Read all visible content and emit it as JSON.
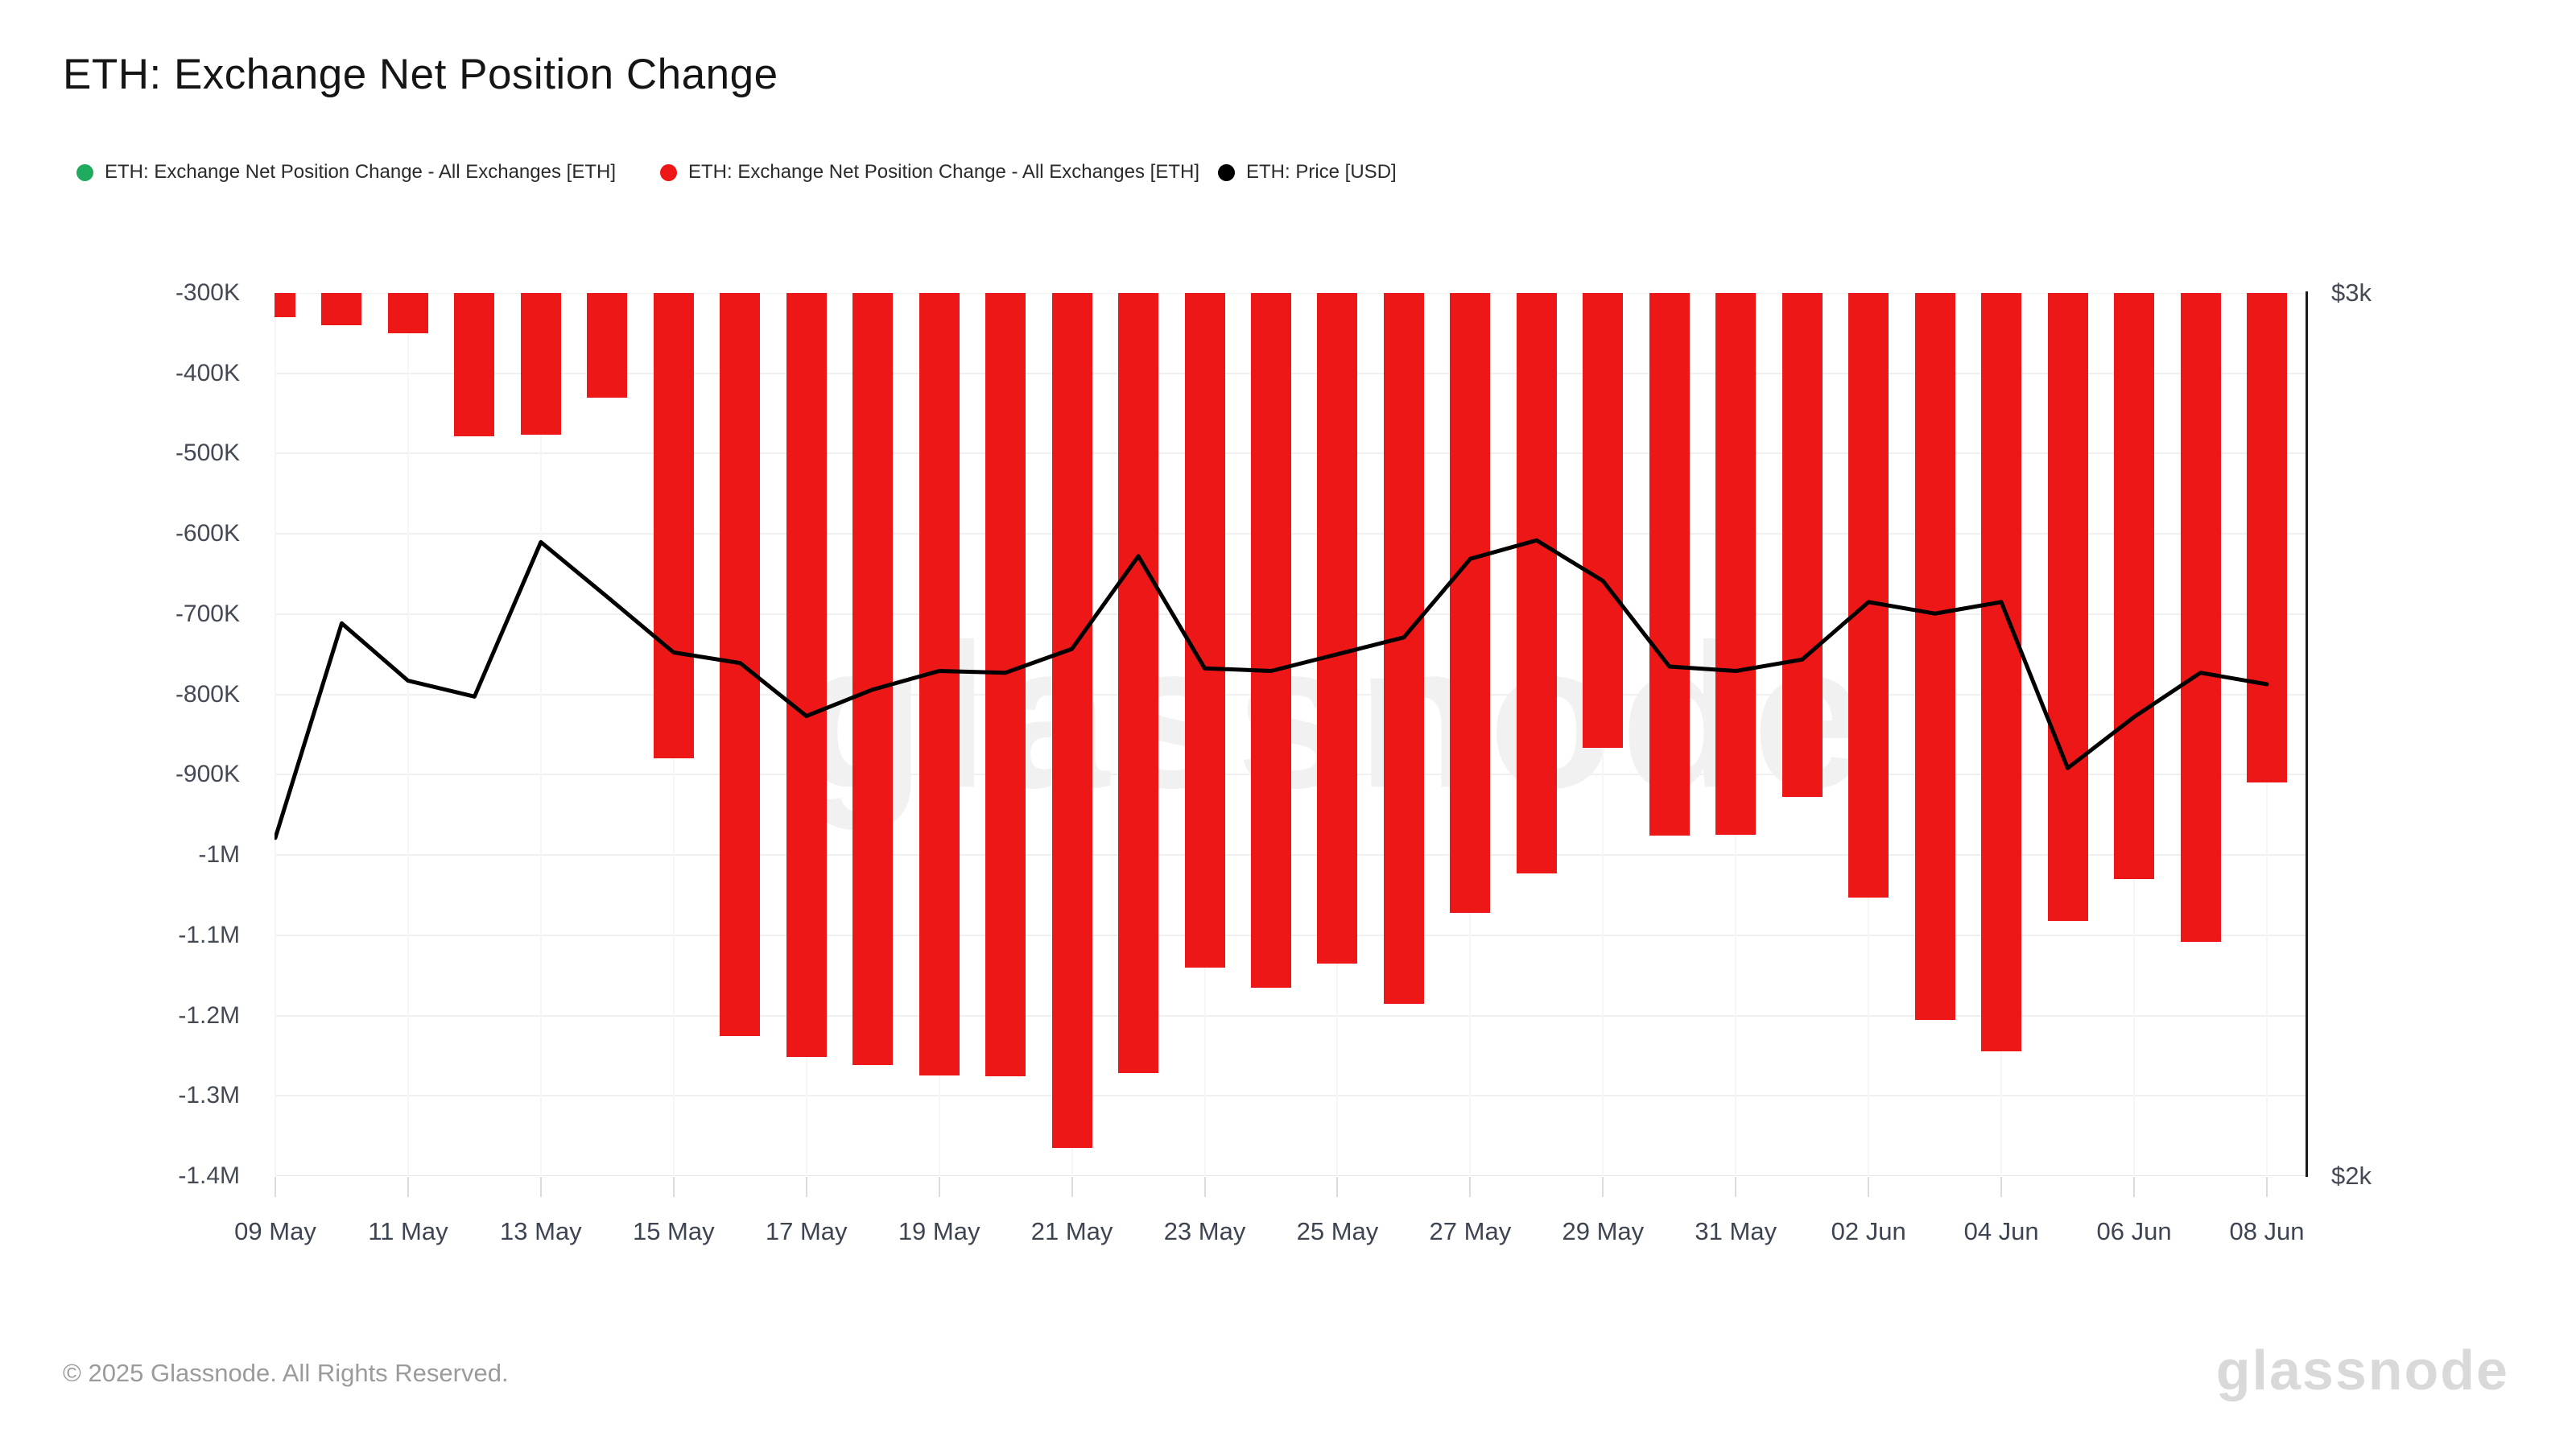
{
  "page": {
    "title": "ETH: Exchange Net Position Change"
  },
  "legend": {
    "items": [
      {
        "label": "ETH: Exchange Net Position Change - All Exchanges [ETH]",
        "color": "#1fab5e"
      },
      {
        "label": "ETH: Exchange Net Position Change - All Exchanges [ETH]",
        "color": "#ed1717"
      },
      {
        "label": "ETH: Price [USD]",
        "color": "#000000"
      }
    ]
  },
  "watermark": {
    "text": "glassnode"
  },
  "footer": {
    "copyright": "© 2025 Glassnode. All Rights Reserved.",
    "brand": "glassnode"
  },
  "chart_data": {
    "type": "bar",
    "title": "ETH: Exchange Net Position Change",
    "grid": true,
    "legend_position": "top",
    "x": [
      "09 May",
      "10 May",
      "11 May",
      "12 May",
      "13 May",
      "14 May",
      "15 May",
      "16 May",
      "17 May",
      "18 May",
      "19 May",
      "20 May",
      "21 May",
      "22 May",
      "23 May",
      "24 May",
      "25 May",
      "26 May",
      "27 May",
      "28 May",
      "29 May",
      "30 May",
      "31 May",
      "01 Jun",
      "02 Jun",
      "03 Jun",
      "04 Jun",
      "05 Jun",
      "06 Jun",
      "07 Jun",
      "08 Jun"
    ],
    "x_tick_labels": [
      "09 May",
      "11 May",
      "13 May",
      "15 May",
      "17 May",
      "19 May",
      "21 May",
      "23 May",
      "25 May",
      "27 May",
      "29 May",
      "31 May",
      "02 Jun",
      "04 Jun",
      "06 Jun",
      "08 Jun"
    ],
    "series": [
      {
        "name": "ETH: Exchange Net Position Change - All Exchanges [ETH]",
        "type": "bar",
        "axis": "left",
        "color": "#ed1717",
        "values": [
          -330000,
          -340000,
          -350000,
          -478000,
          -476000,
          -430000,
          -880000,
          -1225000,
          -1252000,
          -1262000,
          -1275000,
          -1276000,
          -1365000,
          -1272000,
          -1140000,
          -1165000,
          -1135000,
          -1185000,
          -1072000,
          -1023000,
          -866000,
          -976000,
          -975000,
          -928000,
          -1053000,
          -1205000,
          -1245000,
          -1082000,
          -1030000,
          -1108000,
          -910000
        ]
      },
      {
        "name": "ETH: Price [USD]",
        "type": "line",
        "axis": "right",
        "color": "#000000",
        "values": [
          2383,
          2626,
          2561,
          2543,
          2718,
          2656,
          2593,
          2581,
          2521,
          2551,
          2572,
          2570,
          2597,
          2702,
          2575,
          2572,
          2591,
          2610,
          2699,
          2720,
          2674,
          2577,
          2572,
          2585,
          2650,
          2637,
          2650,
          2462,
          2520,
          2570,
          2557
        ]
      }
    ],
    "left_axis": {
      "unit": "ETH",
      "max": -300000,
      "min": -1400000,
      "tick_step": 100000,
      "tick_labels": [
        "-300K",
        "-400K",
        "-500K",
        "-600K",
        "-700K",
        "-800K",
        "-900K",
        "-1M",
        "-1.1M",
        "-1.2M",
        "-1.3M",
        "-1.4M"
      ]
    },
    "right_axis": {
      "unit": "USD",
      "max": 3000,
      "min": 2000,
      "tick_labels": [
        "$3k",
        "$2k"
      ]
    }
  }
}
